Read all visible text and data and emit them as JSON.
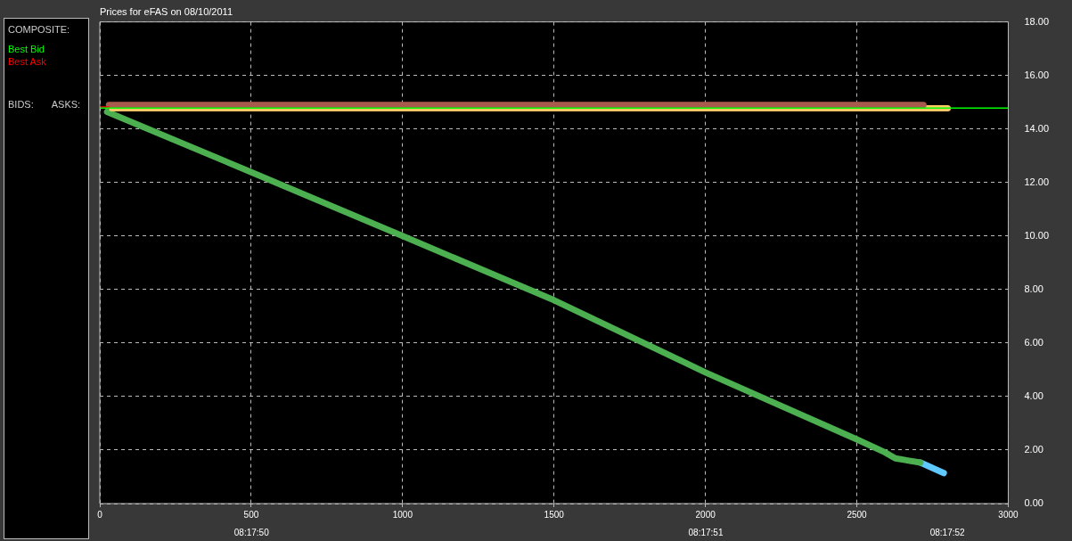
{
  "chart_data": {
    "type": "line",
    "title": "Prices for eFAS on 08/10/2011",
    "legend_title": "COMPOSITE:",
    "legend": "left",
    "annotations": [
      "BIDS:",
      "ASKS:",
      "08:17:50",
      "08:17:51",
      "08:17:52"
    ],
    "xlim": [
      0,
      3000
    ],
    "xticks": [
      0,
      500,
      1000,
      1500,
      2000,
      2500,
      3000
    ],
    "ylim": [
      0,
      18
    ],
    "yticks": [
      {
        "value": 0,
        "label": "0.00"
      },
      {
        "value": 2,
        "label": "2.00"
      },
      {
        "value": 4,
        "label": "4.00"
      },
      {
        "value": 6,
        "label": "6.00"
      },
      {
        "value": 8,
        "label": "8.00"
      },
      {
        "value": 10,
        "label": "10.00"
      },
      {
        "value": 12,
        "label": "12.00"
      },
      {
        "value": 14,
        "label": "14.00"
      },
      {
        "value": 16,
        "label": "16.00"
      },
      {
        "value": 18,
        "label": "18.00"
      }
    ],
    "grid": true,
    "line_style": "solid",
    "marker": "none",
    "series": [
      {
        "color": "#a85a4c",
        "x": [
          30,
          2720
        ],
        "values": [
          14.9,
          14.9
        ]
      },
      {
        "color": "#ffc864",
        "x": [
          40,
          2800
        ],
        "values": [
          14.77,
          14.77
        ]
      },
      {
        "color": "#4caf50",
        "x": [
          24,
          497,
          1000,
          1500,
          2000,
          2500,
          2592,
          2627,
          2710
        ],
        "values": [
          14.64,
          12.4,
          10.0,
          7.6,
          4.9,
          2.4,
          1.92,
          1.69,
          1.53
        ]
      },
      {
        "color": "#5ec8ff",
        "x": [
          2710,
          2787
        ],
        "values": [
          1.53,
          1.14
        ]
      },
      {
        "name": "Best Bid",
        "color": "#00ff00",
        "x": [
          0,
          3000
        ],
        "values": [
          14.78,
          14.78
        ]
      },
      {
        "name": "Best Ask",
        "color": "#ff0000",
        "x": [
          0,
          30
        ],
        "values": [
          14.82,
          14.82
        ]
      }
    ]
  }
}
